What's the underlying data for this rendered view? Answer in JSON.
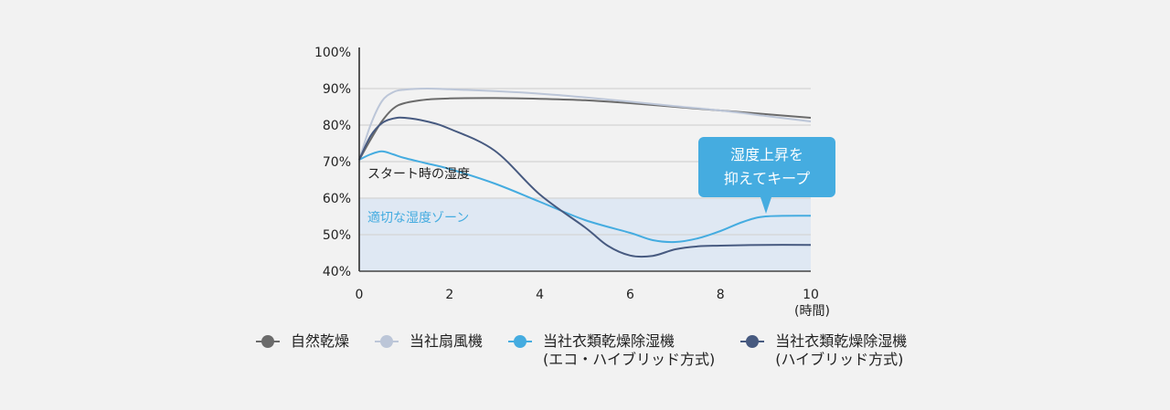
{
  "chart_data": {
    "type": "line",
    "title": "",
    "xlabel": "(時間)",
    "ylabel": "",
    "xlim": [
      0,
      10
    ],
    "ylim": [
      40,
      100
    ],
    "x_ticks": [
      "0",
      "2",
      "4",
      "6",
      "8",
      "10"
    ],
    "y_ticks": [
      "40%",
      "50%",
      "60%",
      "70%",
      "80%",
      "90%",
      "100%"
    ],
    "grid": true,
    "legend_position": "bottom",
    "shaded_band": {
      "label": "適切な湿度ゾーン",
      "y_range": [
        40,
        60
      ],
      "color": "#dfe8f3"
    },
    "annotations": [
      {
        "text": "スタート時の湿度",
        "x": 0,
        "y": 70
      },
      {
        "text": "湿度上昇を\n抑えてキープ",
        "x": 9,
        "y": 55,
        "type": "callout"
      }
    ],
    "series": [
      {
        "name": "自然乾燥",
        "color": "#6b6b6b",
        "x": [
          0,
          0.25,
          0.5,
          0.75,
          1,
          1.5,
          2,
          3,
          4,
          5,
          6,
          7,
          8,
          9,
          10
        ],
        "values": [
          70.5,
          76,
          81,
          84.5,
          86,
          87,
          87.3,
          87.4,
          87.2,
          86.8,
          86,
          85,
          84,
          83,
          82
        ]
      },
      {
        "name": "当社扇風機",
        "color": "#bcc6d8",
        "x": [
          0,
          0.25,
          0.5,
          0.75,
          1,
          1.5,
          2,
          3,
          4,
          5,
          6,
          7,
          8,
          9,
          10
        ],
        "values": [
          70.5,
          80,
          86.5,
          89,
          89.7,
          90,
          89.8,
          89.3,
          88.6,
          87.6,
          86.4,
          85.2,
          84,
          82.5,
          81
        ]
      },
      {
        "name": "当社衣類乾燥除湿機（エコ・ハイブリッド方式）",
        "color": "#45ace0",
        "x": [
          0,
          0.25,
          0.5,
          0.75,
          1,
          1.5,
          2,
          3,
          4,
          5,
          6,
          6.5,
          7,
          7.5,
          8,
          8.5,
          9,
          10
        ],
        "values": [
          70.5,
          72,
          72.8,
          72,
          71,
          69.5,
          68,
          64,
          59,
          54,
          50.5,
          48.5,
          48,
          49,
          51,
          53.5,
          55,
          55.2
        ]
      },
      {
        "name": "当社衣類乾燥除湿機（ハイブリッド方式）",
        "color": "#475a80",
        "x": [
          0,
          0.25,
          0.5,
          0.75,
          1,
          1.5,
          2,
          3,
          4,
          5,
          5.5,
          6,
          6.5,
          7,
          7.5,
          8,
          9,
          10
        ],
        "values": [
          70.5,
          77,
          80.5,
          81.8,
          82,
          81,
          79,
          73,
          61,
          52,
          47,
          44.3,
          44.2,
          46,
          46.8,
          47,
          47.2,
          47.2
        ]
      }
    ]
  },
  "annotations": {
    "start_label": "スタート時の湿度",
    "zone_label": "適切な湿度ゾーン",
    "callout_line1": "湿度上昇を",
    "callout_line2": "抑えてキープ"
  },
  "axis": {
    "x_unit": "(時間)"
  },
  "legend": [
    {
      "line1": "自然乾燥",
      "line2": "",
      "color": "#6b6b6b"
    },
    {
      "line1": "当社扇風機",
      "line2": "",
      "color": "#bcc6d8"
    },
    {
      "line1": "当社衣類乾燥除湿機",
      "line2": "(エコ・ハイブリッド方式)",
      "color": "#45ace0"
    },
    {
      "line1": "当社衣類乾燥除湿機",
      "line2": "(ハイブリッド方式)",
      "color": "#475a80"
    }
  ]
}
